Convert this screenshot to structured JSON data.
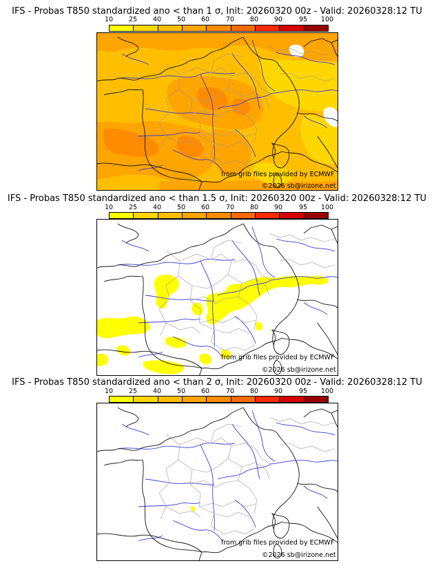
{
  "scale": {
    "labels": [
      "10",
      "25",
      "40",
      "50",
      "60",
      "70",
      "80",
      "90",
      "95",
      "100"
    ],
    "colors": [
      "#ffff00",
      "#ffd700",
      "#ffbf00",
      "#ffa500",
      "#ff8c00",
      "#ff6a00",
      "#ff2a00",
      "#d70000",
      "#9b0000",
      "#5a0000"
    ]
  },
  "panels": [
    {
      "title": "IFS - Probas T850  standardized ano < than 1 σ, Init: 20260320 00z - Valid: 20260328:12 TU",
      "credit_grib": "from grib files provided by ECMWF",
      "credit_site": "©2026 sb@irizone.net"
    },
    {
      "title": "IFS - Probas T850  standardized ano < than 1.5 σ, Init: 20260320 00z - Valid: 20260328:12 TU",
      "credit_grib": "from grib files provided by ECMWF",
      "credit_site": "©2026 sb@irizone.net"
    },
    {
      "title": "IFS - Probas T850  standardized ano < than 2 σ, Init: 20260320 00z - Valid: 20260328:12 TU",
      "credit_grib": "from grib files provided by ECMWF",
      "credit_site": "©2026 sb@irizone.net"
    }
  ]
}
